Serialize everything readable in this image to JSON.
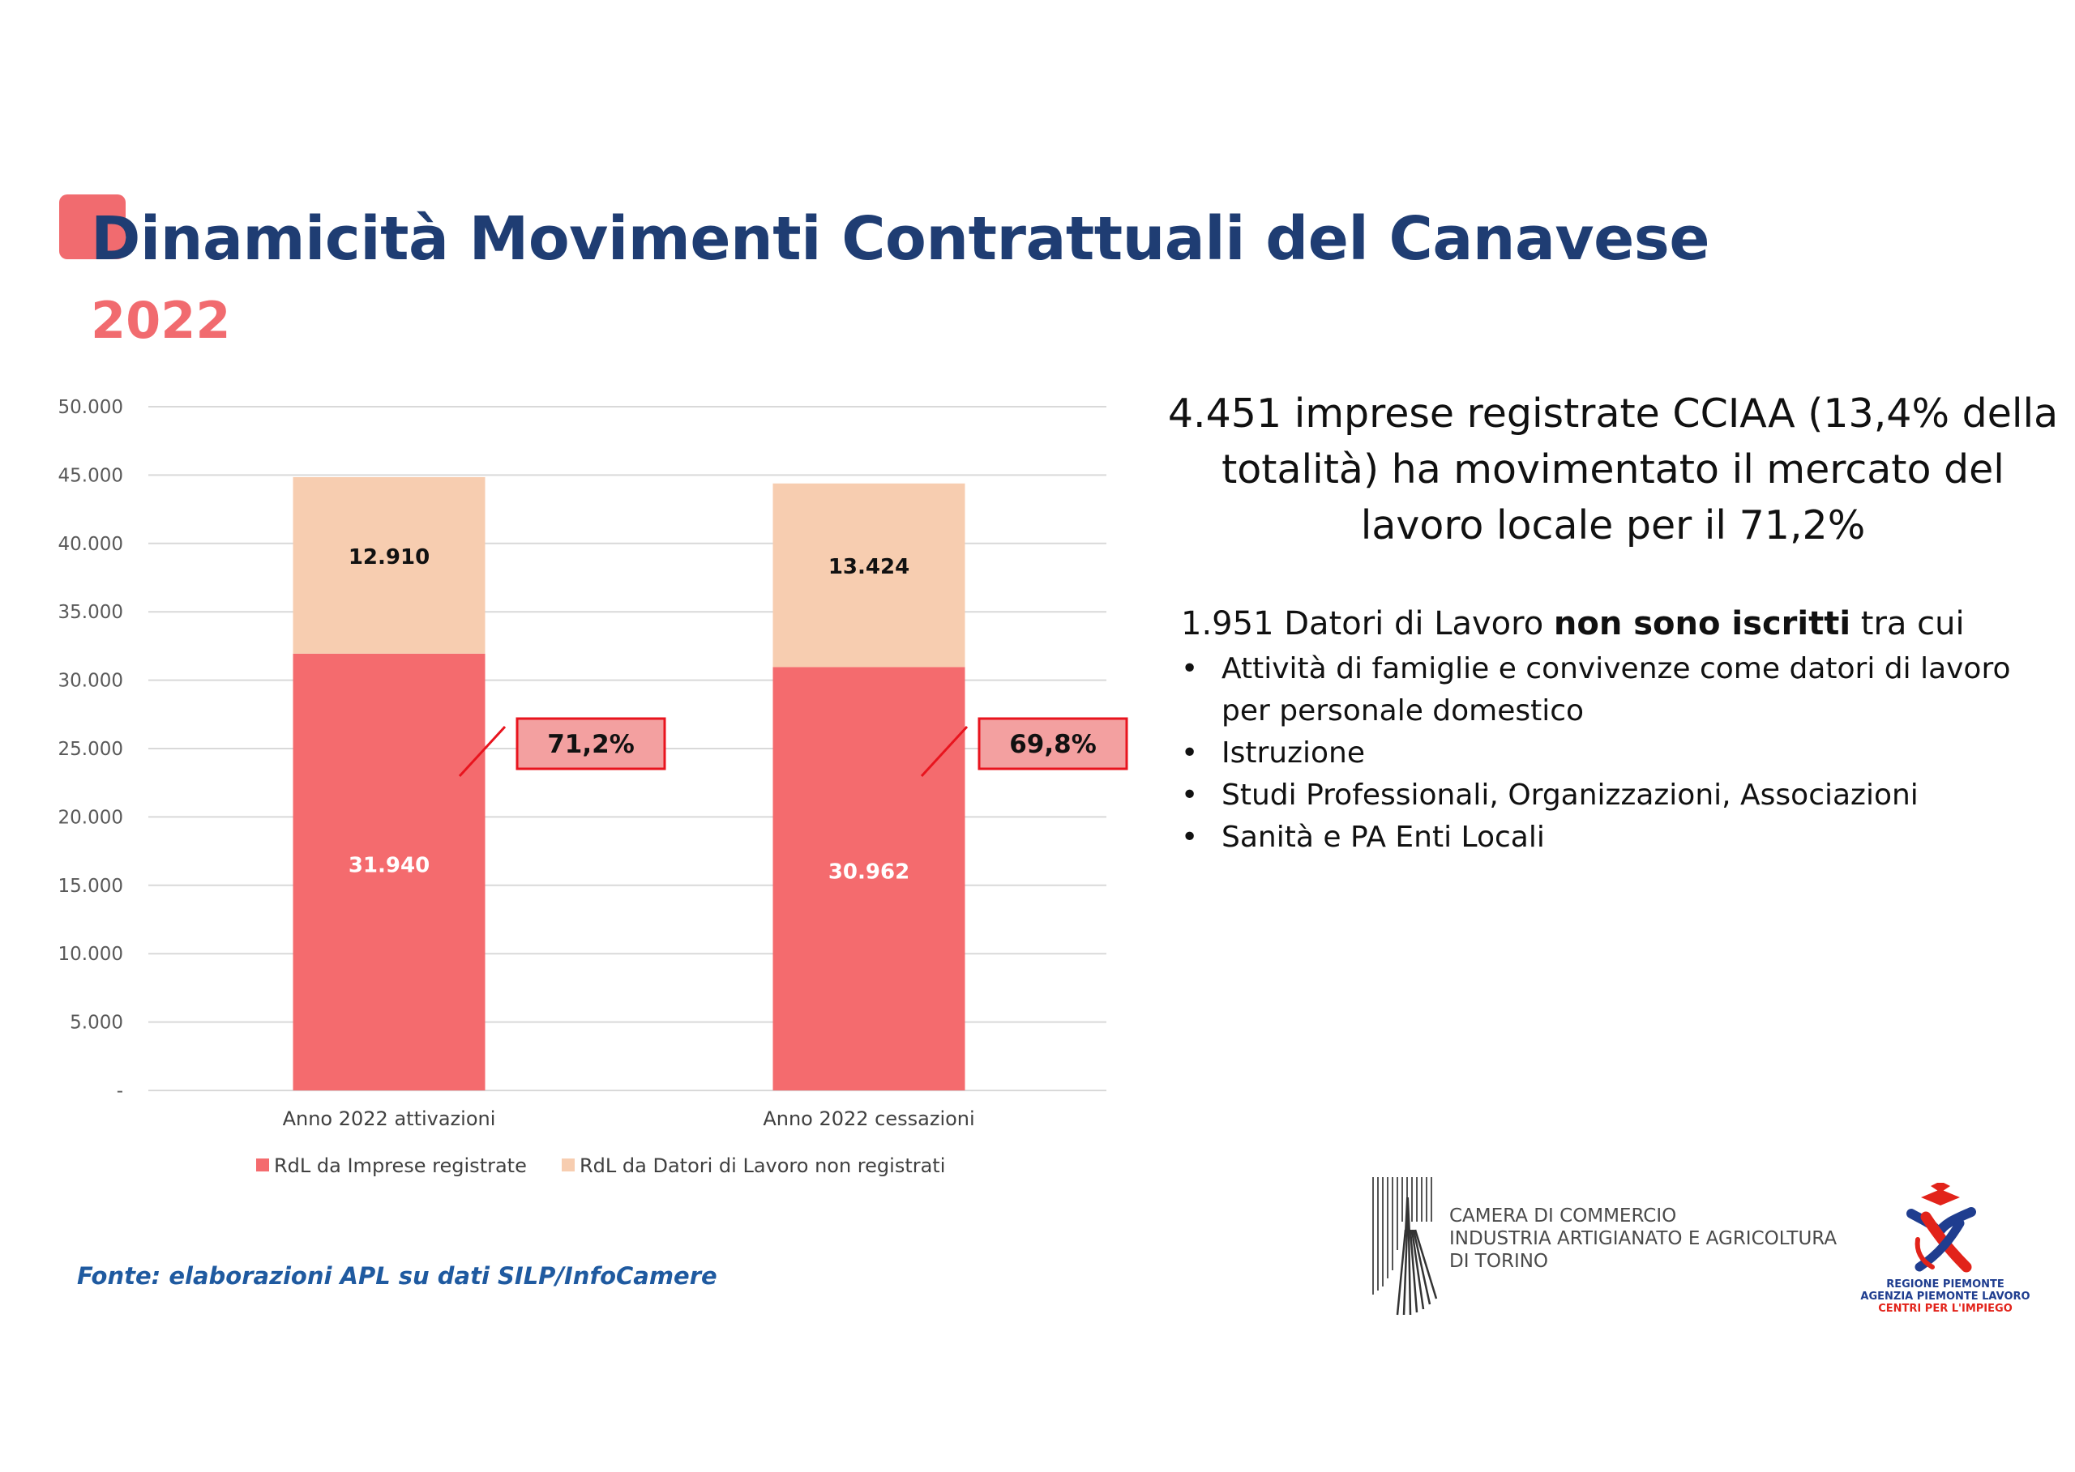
{
  "header": {
    "title": "Dinamicità Movimenti Contrattuali del Canavese",
    "subtitle": "2022"
  },
  "colors": {
    "title": "#1f3d73",
    "accent": "#f16b6f",
    "series_registrate": "#f46b6e",
    "series_non_registrati": "#f7cdb0",
    "annotation_border": "#e8141e",
    "annotation_fill": "#f3a0a0",
    "source_text": "#1f5aa0"
  },
  "chart_data": {
    "type": "bar",
    "stacked": true,
    "categories": [
      "Anno 2022 attivazioni",
      "Anno 2022 cessazioni"
    ],
    "series": [
      {
        "name": "RdL da Imprese registrate",
        "values": [
          31940,
          30962
        ],
        "labels": [
          "31.940",
          "30.962"
        ],
        "color": "#f46b6e"
      },
      {
        "name": "RdL da Datori di Lavoro non registrati",
        "values": [
          12910,
          13424
        ],
        "labels": [
          "12.910",
          "13.424"
        ],
        "color": "#f7cdb0"
      }
    ],
    "ylim": [
      0,
      50000
    ],
    "yticks": [
      0,
      5000,
      10000,
      15000,
      20000,
      25000,
      30000,
      35000,
      40000,
      45000,
      50000
    ],
    "ytick_labels": [
      "-",
      "5.000",
      "10.000",
      "15.000",
      "20.000",
      "25.000",
      "30.000",
      "35.000",
      "40.000",
      "45.000",
      "50.000"
    ],
    "annotations": [
      "71,2%",
      "69,8%"
    ],
    "grid": true,
    "legend_position": "bottom"
  },
  "info": {
    "headline": "4.451 imprese registrate CCIAA (13,4% della totalità) ha movimentato il mercato del lavoro locale per il 71,2%",
    "datori_prefix": "1.951 Datori di Lavoro ",
    "datori_bold": "non sono iscritti",
    "datori_suffix": " tra cui",
    "bullets": [
      "Attività di famiglie e convivenze come datori di lavoro per personale domestico",
      "Istruzione",
      "Studi Professionali, Organizzazioni, Associazioni",
      "Sanità e PA Enti Locali"
    ]
  },
  "footer": {
    "source": "Fonte: elaborazioni APL su dati SILP/InfoCamere",
    "ccia_lines": [
      "CAMERA DI COMMERCIO",
      "INDUSTRIA ARTIGIANATO E AGRICOLTURA",
      "DI TORINO"
    ],
    "regione_lines": [
      "REGIONE PIEMONTE",
      "AGENZIA PIEMONTE LAVORO",
      "CENTRI PER L'IMPIEGO"
    ]
  }
}
